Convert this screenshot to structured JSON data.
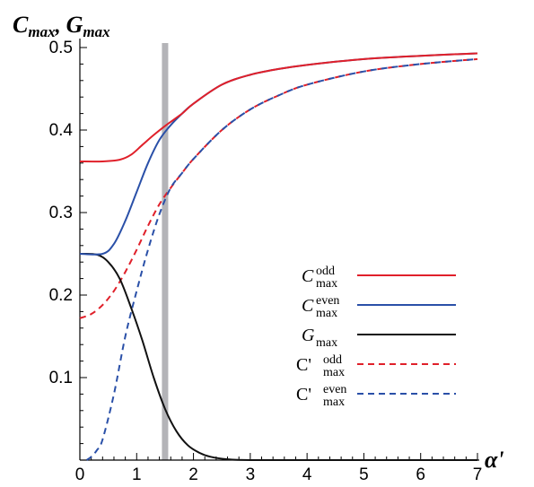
{
  "chart_data": {
    "type": "line",
    "y_axis_title": {
      "part1": "C",
      "sub1": "max",
      "sep": ", ",
      "part2": "G",
      "sub2": "max"
    },
    "x_axis_title": "α'",
    "xlim": [
      0,
      7
    ],
    "ylim": [
      0,
      0.5
    ],
    "x_ticks": [
      {
        "value": 0,
        "label": "0"
      },
      {
        "value": 1,
        "label": "1"
      },
      {
        "value": 2,
        "label": "2"
      },
      {
        "value": 3,
        "label": "3"
      },
      {
        "value": 4,
        "label": "4"
      },
      {
        "value": 5,
        "label": "5"
      },
      {
        "value": 6,
        "label": "6"
      },
      {
        "value": 7,
        "label": "7"
      }
    ],
    "y_ticks": [
      {
        "value": 0.1,
        "label": "0.1"
      },
      {
        "value": 0.2,
        "label": "0.2"
      },
      {
        "value": 0.3,
        "label": "0.3"
      },
      {
        "value": 0.4,
        "label": "0.4"
      },
      {
        "value": 0.5,
        "label": "0.5"
      }
    ],
    "vertical_marker": {
      "x": 1.5,
      "color": "#b4b4b8"
    },
    "legend_position": "right",
    "grid": false,
    "series": [
      {
        "label_main": "C",
        "label_prime": "",
        "label_sup": "odd",
        "label_sub": "max",
        "color": "#e0202a",
        "dash": false,
        "x": [
          0,
          0.4,
          0.7,
          0.9,
          1.1,
          1.3,
          1.5,
          1.8,
          2.0,
          2.5,
          3.0,
          3.5,
          4.0,
          5.0,
          6.0,
          7.0
        ],
        "y": [
          0.362,
          0.362,
          0.364,
          0.37,
          0.382,
          0.394,
          0.405,
          0.42,
          0.432,
          0.455,
          0.467,
          0.474,
          0.479,
          0.486,
          0.49,
          0.493
        ]
      },
      {
        "label_main": "C",
        "label_prime": "",
        "label_sup": "even",
        "label_sub": "max",
        "color": "#2a50a8",
        "dash": false,
        "x": [
          0,
          0.4,
          0.6,
          0.8,
          1.0,
          1.2,
          1.4,
          1.6,
          1.8,
          2.0,
          2.5,
          3.0,
          3.5,
          4.0,
          5.0,
          6.0,
          7.0
        ],
        "y": [
          0.25,
          0.25,
          0.262,
          0.29,
          0.325,
          0.36,
          0.388,
          0.406,
          0.42,
          0.432,
          0.455,
          0.467,
          0.474,
          0.479,
          0.486,
          0.49,
          0.493
        ]
      },
      {
        "label_main": "G",
        "label_prime": "",
        "label_sup": "",
        "label_sub": "max",
        "color": "#111111",
        "dash": false,
        "x": [
          0,
          0.3,
          0.5,
          0.7,
          0.9,
          1.1,
          1.3,
          1.5,
          1.7,
          1.9,
          2.1,
          2.3,
          2.6,
          3.0,
          4.0,
          7.0
        ],
        "y": [
          0.25,
          0.249,
          0.24,
          0.22,
          0.185,
          0.145,
          0.1,
          0.062,
          0.035,
          0.018,
          0.009,
          0.004,
          0.001,
          0.0,
          0.0,
          0.0
        ]
      },
      {
        "label_main": "C",
        "label_prime": "'",
        "label_sup": "odd",
        "label_sub": "max",
        "color": "#e0202a",
        "dash": true,
        "x": [
          0,
          0.2,
          0.4,
          0.6,
          0.8,
          1.0,
          1.2,
          1.4,
          1.6,
          1.8,
          2.0,
          2.5,
          3.0,
          3.5,
          4.0,
          5.0,
          6.0,
          7.0
        ],
        "y": [
          0.172,
          0.177,
          0.188,
          0.205,
          0.228,
          0.255,
          0.284,
          0.31,
          0.33,
          0.348,
          0.365,
          0.4,
          0.425,
          0.442,
          0.455,
          0.471,
          0.48,
          0.486
        ]
      },
      {
        "label_main": "C",
        "label_prime": "'",
        "label_sup": "even",
        "label_sub": "max",
        "color": "#2a50a8",
        "dash": true,
        "x": [
          0.12,
          0.2,
          0.3,
          0.4,
          0.6,
          0.8,
          1.0,
          1.2,
          1.4,
          1.6,
          1.8,
          2.0,
          2.5,
          3.0,
          3.5,
          4.0,
          5.0,
          6.0,
          7.0
        ],
        "y": [
          0.0,
          0.004,
          0.012,
          0.025,
          0.08,
          0.15,
          0.205,
          0.255,
          0.298,
          0.33,
          0.348,
          0.365,
          0.4,
          0.425,
          0.442,
          0.455,
          0.471,
          0.48,
          0.486
        ]
      }
    ]
  }
}
